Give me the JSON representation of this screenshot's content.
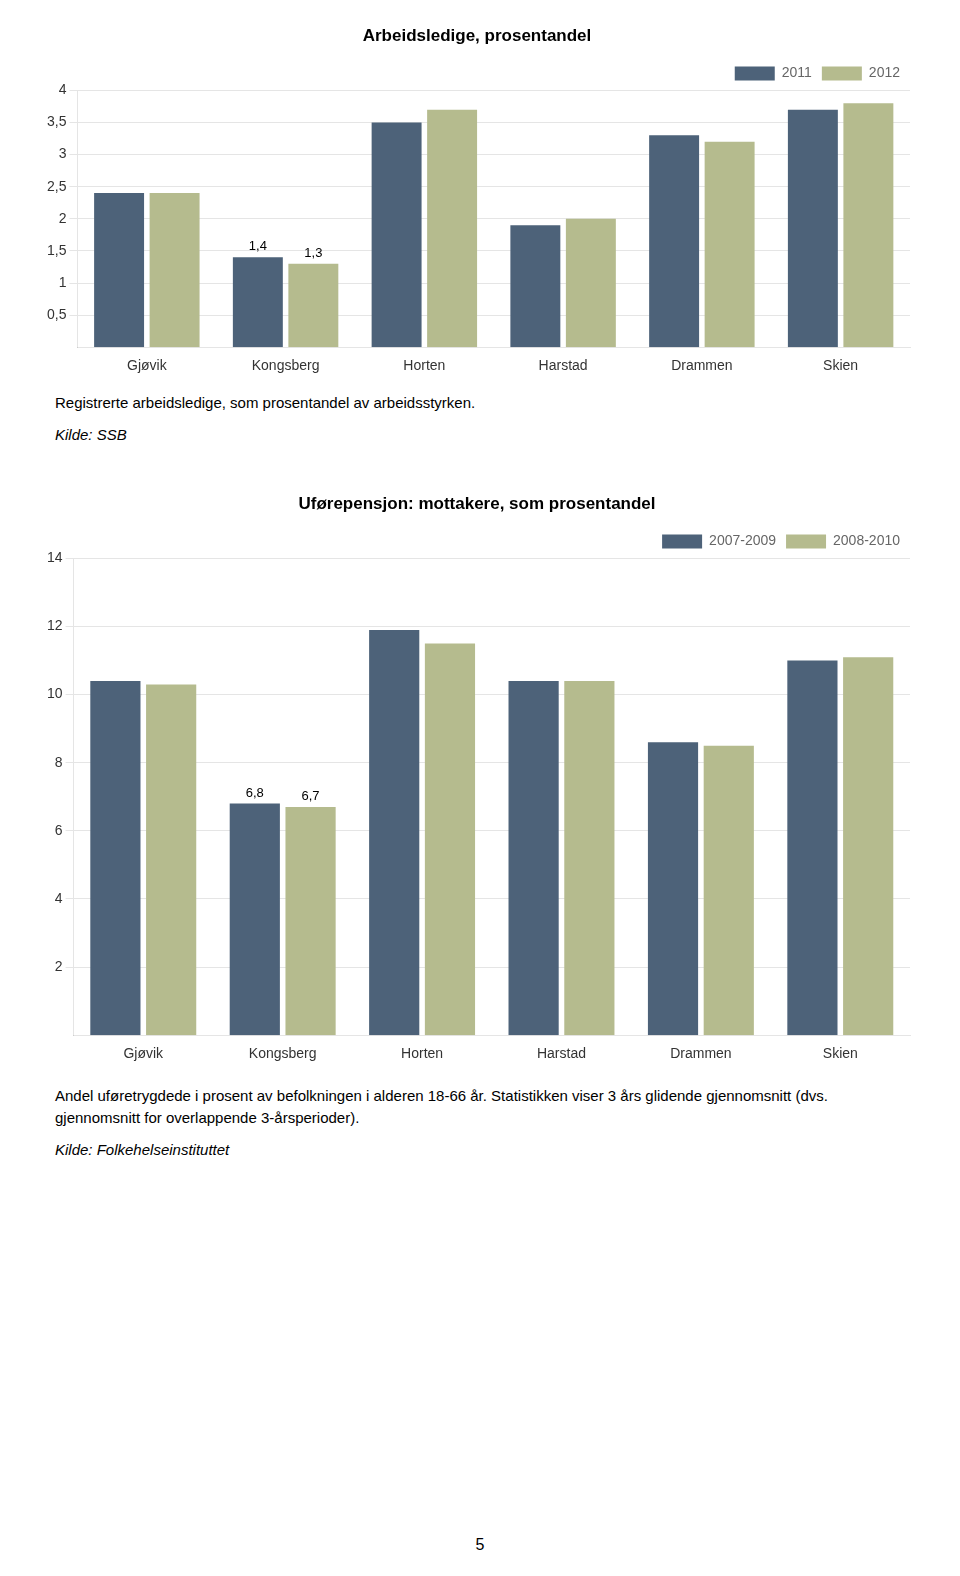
{
  "chart_data": [
    {
      "type": "bar",
      "title": "Arbeidsledige, prosentandel",
      "categories": [
        "Gjøvik",
        "Kongsberg",
        "Horten",
        "Harstad",
        "Drammen",
        "Skien"
      ],
      "series": [
        {
          "name": "2011",
          "color": "#4d6279",
          "values": [
            2.4,
            1.4,
            3.5,
            1.9,
            3.3,
            3.7
          ]
        },
        {
          "name": "2012",
          "color": "#b5bb8e",
          "values": [
            2.4,
            1.3,
            3.7,
            2.0,
            3.2,
            3.8
          ]
        }
      ],
      "annotations": [
        {
          "category": "Kongsberg",
          "series": "2011",
          "text": "1,4"
        },
        {
          "category": "Kongsberg",
          "series": "2012",
          "text": "1,3"
        }
      ],
      "ylim": [
        0,
        4
      ],
      "yticks": [
        {
          "value": 0.5,
          "label": "0,5"
        },
        1,
        {
          "value": 1.5,
          "label": "1,5"
        },
        2,
        {
          "value": 2.5,
          "label": "2,5"
        },
        3,
        {
          "value": 3.5,
          "label": "3,5"
        },
        4
      ],
      "grid": true,
      "legend": "upper right",
      "note": "Registrerte arbeidsledige, som prosentandel av arbeidsstyrken.",
      "source": "Kilde: SSB"
    },
    {
      "type": "bar",
      "title": "Uførepensjon: mottakere, som prosentandel",
      "categories": [
        "Gjøvik",
        "Kongsberg",
        "Horten",
        "Harstad",
        "Drammen",
        "Skien"
      ],
      "series": [
        {
          "name": "2007-2009",
          "color": "#4d6279",
          "values": [
            10.4,
            6.8,
            11.9,
            10.4,
            8.6,
            11.0
          ]
        },
        {
          "name": "2008-2010",
          "color": "#b5bb8e",
          "values": [
            10.3,
            6.7,
            11.5,
            10.4,
            8.5,
            11.1
          ]
        }
      ],
      "annotations": [
        {
          "category": "Kongsberg",
          "series": "2007-2009",
          "text": "6,8"
        },
        {
          "category": "Kongsberg",
          "series": "2008-2010",
          "text": "6,7"
        }
      ],
      "ylim": [
        0,
        14
      ],
      "yticks": [
        2,
        4,
        6,
        8,
        10,
        12,
        14
      ],
      "grid": true,
      "legend": "upper right",
      "note": "Andel uføretrygdede i prosent av befolkningen i alderen 18-66 år. Statistikken viser 3 års glidende gjennomsnitt (dvs. gjennomsnitt for overlappende 3-årsperioder).",
      "source": "Kilde: Folkehelseinstituttet"
    }
  ],
  "page_number": "5"
}
